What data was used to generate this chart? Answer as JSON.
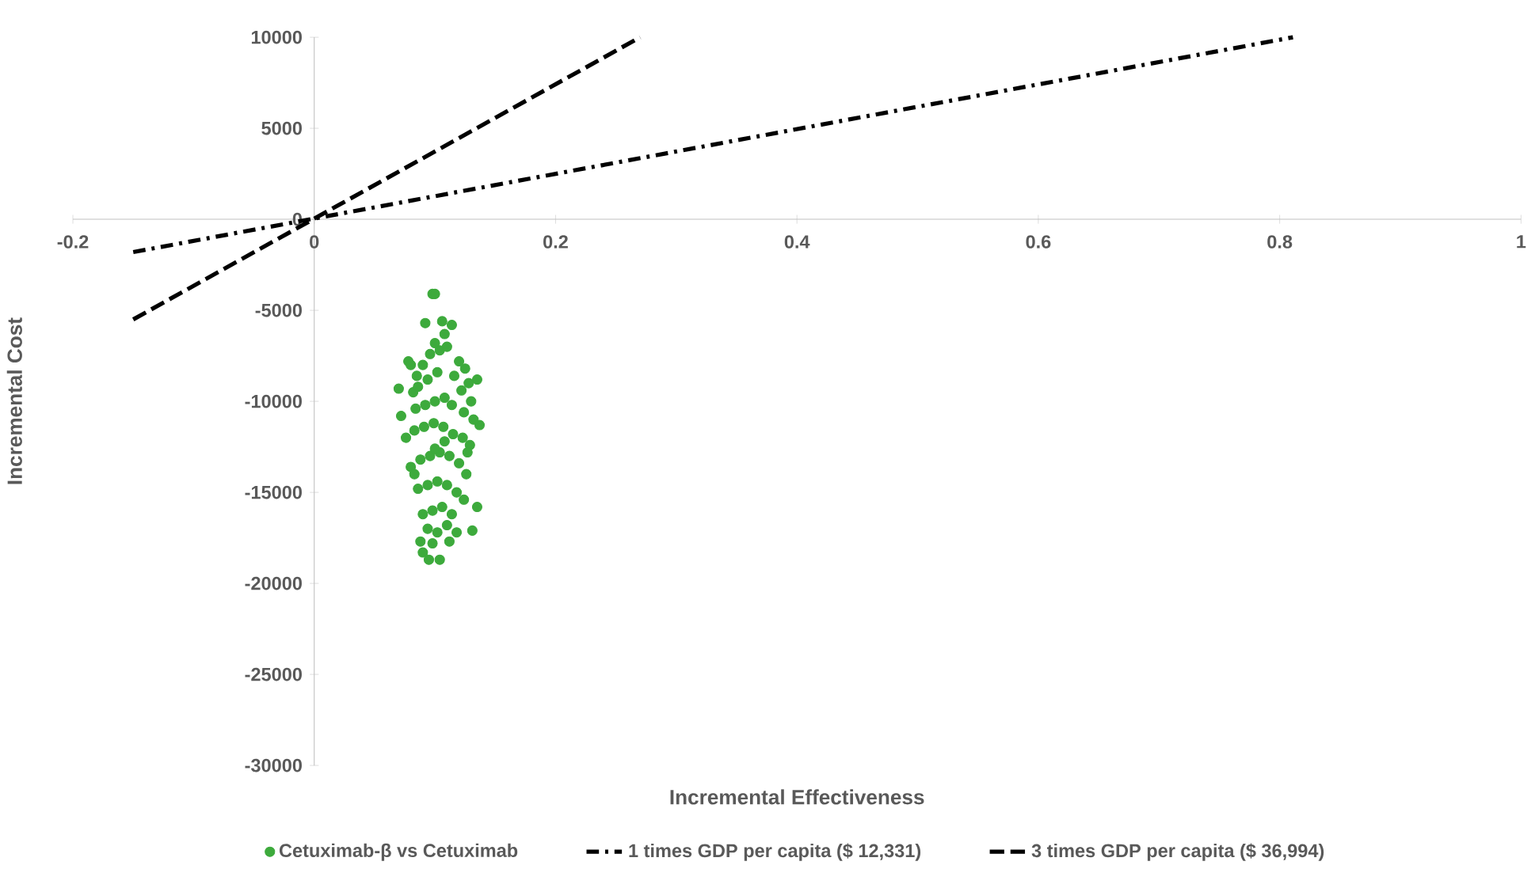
{
  "chart_data": {
    "type": "scatter",
    "xlabel": "Incremental Effectiveness",
    "ylabel": "Incremental Cost",
    "xlim": [
      -0.2,
      1
    ],
    "ylim": [
      -30000,
      10000
    ],
    "xticks": [
      -0.2,
      0,
      0.2,
      0.4,
      0.6,
      0.8,
      1
    ],
    "yticks": [
      -30000,
      -25000,
      -20000,
      -15000,
      -10000,
      -5000,
      0,
      5000,
      10000
    ],
    "grid": false,
    "legend": "bottom",
    "marker": "circle",
    "series": [
      {
        "name": "Cetuximab-β vs Cetuximab",
        "color": "#3daa3c",
        "x": [
          0.098,
          0.1,
          0.092,
          0.106,
          0.114,
          0.108,
          0.078,
          0.08,
          0.07,
          0.072,
          0.135,
          0.137,
          0.135,
          0.131,
          0.095,
          0.104,
          0.09,
          0.088,
          0.098,
          0.112,
          0.118,
          0.1,
          0.104,
          0.096,
          0.11,
          0.09,
          0.085,
          0.12,
          0.125,
          0.128,
          0.082,
          0.086,
          0.094,
          0.102,
          0.116,
          0.122,
          0.13,
          0.084,
          0.092,
          0.1,
          0.108,
          0.114,
          0.124,
          0.132,
          0.076,
          0.083,
          0.091,
          0.099,
          0.107,
          0.115,
          0.123,
          0.129,
          0.08,
          0.088,
          0.096,
          0.104,
          0.112,
          0.12,
          0.126,
          0.086,
          0.094,
          0.102,
          0.11,
          0.118,
          0.124,
          0.09,
          0.098,
          0.106,
          0.114,
          0.094,
          0.102,
          0.11,
          0.083,
          0.127,
          0.1,
          0.108
        ],
        "values": [
          -4100,
          -4100,
          -5700,
          -5600,
          -5800,
          -6300,
          -7800,
          -8000,
          -9300,
          -10800,
          -8800,
          -11300,
          -15800,
          -17100,
          -18700,
          -18700,
          -18300,
          -17700,
          -17800,
          -17700,
          -17200,
          -6800,
          -7200,
          -7400,
          -7000,
          -8000,
          -8600,
          -7800,
          -8200,
          -9000,
          -9500,
          -9200,
          -8800,
          -8400,
          -8600,
          -9400,
          -10000,
          -10400,
          -10200,
          -10000,
          -9800,
          -10200,
          -10600,
          -11000,
          -12000,
          -11600,
          -11400,
          -11200,
          -11400,
          -11800,
          -12000,
          -12400,
          -13600,
          -13200,
          -13000,
          -12800,
          -13000,
          -13400,
          -14000,
          -14800,
          -14600,
          -14400,
          -14600,
          -15000,
          -15400,
          -16200,
          -16000,
          -15800,
          -16200,
          -17000,
          -17200,
          -16800,
          -14000,
          -12800,
          -12600,
          -12200
        ]
      },
      {
        "name": "1 times GDP per capita ($ 12,331)",
        "type": "line",
        "line_style": "dashdot",
        "marker": "none",
        "color": "#000000",
        "x": [
          -0.15,
          0.811
        ],
        "values": [
          -1800,
          10000
        ]
      },
      {
        "name": "3 times GDP per capita ($ 36,994)",
        "type": "line",
        "line_style": "dashed",
        "marker": "none",
        "color": "#000000",
        "x": [
          -0.15,
          0.27
        ],
        "values": [
          -5500,
          10000
        ]
      }
    ]
  }
}
